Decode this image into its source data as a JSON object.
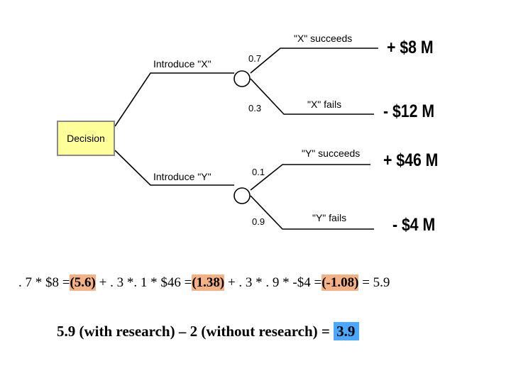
{
  "tree": {
    "decision_label": "Decision",
    "branches": [
      {
        "label": "Introduce \"X\"",
        "outcomes": [
          {
            "probability": "0.7",
            "label": "\"X\" succeeds",
            "payoff": "+ $8 M"
          },
          {
            "probability": "0.3",
            "label": "\"X\" fails",
            "payoff": "- $12 M"
          }
        ]
      },
      {
        "label": "Introduce \"Y\"",
        "outcomes": [
          {
            "probability": "0.1",
            "label": "\"Y\" succeeds",
            "payoff": "+ $46 M"
          },
          {
            "probability": "0.9",
            "label": "\"Y\" fails",
            "payoff": "- $4 M"
          }
        ]
      }
    ],
    "colors": {
      "decision_fill": "#ffff99",
      "line": "#000000"
    }
  },
  "calculation": {
    "part1": ". 7 * $8 =",
    "value1": "(5.6)",
    "part2": " + . 3 *. 1 * $46 =",
    "value2": "(1.38)",
    "part3": " + . 3 * . 9 * -$4 =",
    "value3": "(-1.08)",
    "part4": " = 5.9",
    "highlight_color": "#f4b183"
  },
  "summary": {
    "text": "5.9 (with research) – 2 (without research) = ",
    "result": "3.9",
    "result_color": "#4aa8ff"
  }
}
